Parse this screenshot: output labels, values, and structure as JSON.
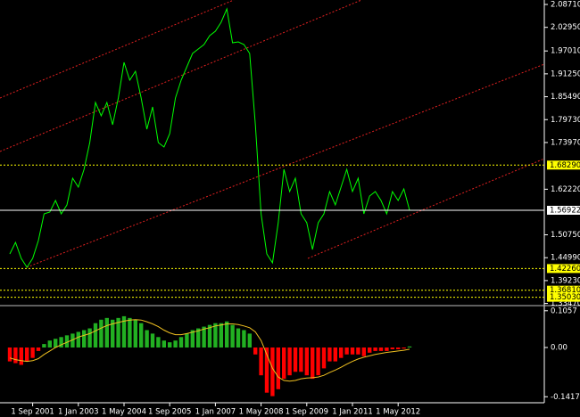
{
  "chart_data": [
    {
      "type": "line",
      "color": "#00ff00",
      "values": [
        1.4593,
        1.4884,
        1.4481,
        1.4257,
        1.4481,
        1.4929,
        1.5602,
        1.5647,
        1.5938,
        1.5602,
        1.5826,
        1.6499,
        1.6274,
        1.6723,
        1.7396,
        1.8405,
        1.8068,
        1.8405,
        1.7844,
        1.8517,
        1.9413,
        1.8965,
        1.9189,
        1.8517,
        1.7732,
        1.8292,
        1.7396,
        1.7283,
        1.762,
        1.8517,
        1.8965,
        1.9301,
        1.9638,
        1.975,
        1.9862,
        2.0086,
        2.0198,
        2.0422,
        2.0759,
        1.9907,
        1.9929,
        1.9862,
        1.9638,
        1.7844,
        1.5602,
        1.4593,
        1.4369,
        1.5378,
        1.6723,
        1.6162,
        1.6499,
        1.5602,
        1.5378,
        1.4705,
        1.5378,
        1.5602,
        1.6162,
        1.5826,
        1.6274,
        1.6723,
        1.6162,
        1.6499,
        1.5602,
        1.605,
        1.6162,
        1.5938,
        1.5602,
        1.6162,
        1.5938,
        1.623,
        1.5692
      ],
      "ylim": [
        1.3293,
        2.0983
      ],
      "yticks": [
        {
          "value": 2.0871,
          "label": "2.08710"
        },
        {
          "value": 2.0295,
          "label": "2.02950"
        },
        {
          "value": 1.9701,
          "label": "1.97010"
        },
        {
          "value": 1.9125,
          "label": "1.91250"
        },
        {
          "value": 1.8549,
          "label": "1.85490"
        },
        {
          "value": 1.7973,
          "label": "1.79730"
        },
        {
          "value": 1.7397,
          "label": "1.73970"
        },
        {
          "value": 1.6222,
          "label": "1.62220"
        },
        {
          "value": 1.5075,
          "label": "1.50750"
        },
        {
          "value": 1.4499,
          "label": "1.44990"
        },
        {
          "value": 1.3923,
          "label": "1.39230"
        },
        {
          "value": 1.3347,
          "label": "1.33470"
        }
      ],
      "levels": [
        {
          "value": 1.6829,
          "label": "1.68290",
          "color": "#ffff00",
          "dashed": true
        },
        {
          "value": 1.56922,
          "label": "1.56922",
          "color": "#ffffff",
          "dashed": false
        },
        {
          "value": 1.4226,
          "label": "1.42260",
          "color": "#ffff00",
          "dashed": true
        },
        {
          "value": 1.3681,
          "label": "1.36810",
          "color": "#ffff00",
          "dashed": true
        },
        {
          "value": 1.3503,
          "label": "1.35030",
          "color": "#ffff00",
          "dashed": true
        }
      ]
    },
    {
      "type": "bar",
      "categories": [
        null,
        null,
        null,
        null,
        "1 Sep 2001",
        null,
        null,
        null,
        null,
        null,
        null,
        null,
        "1 Jan 2003",
        null,
        null,
        null,
        null,
        null,
        null,
        null,
        "1 May 2004",
        null,
        null,
        null,
        null,
        null,
        null,
        null,
        "1 Sep 2005",
        null,
        null,
        null,
        null,
        null,
        null,
        null,
        "1 Jan 2007",
        null,
        null,
        null,
        null,
        null,
        null,
        null,
        "1 May 2008",
        null,
        null,
        null,
        null,
        null,
        null,
        null,
        "1 Sep 2009",
        null,
        null,
        null,
        null,
        null,
        null,
        null,
        "1 Jan 2011",
        null,
        null,
        null,
        null,
        null,
        null,
        null,
        "1 May 2012",
        null,
        null
      ],
      "series": [
        {
          "type": "bar",
          "color": "#22b022",
          "negative_color": "#ff0000",
          "values": [
            -0.04,
            -0.045,
            -0.05,
            -0.04,
            -0.03,
            -0.01,
            0.01,
            0.02,
            0.025,
            0.03,
            0.035,
            0.04,
            0.045,
            0.05,
            0.055,
            0.07,
            0.08,
            0.085,
            0.08,
            0.085,
            0.09,
            0.085,
            0.08,
            0.07,
            0.05,
            0.04,
            0.03,
            0.02,
            0.015,
            0.02,
            0.03,
            0.04,
            0.05,
            0.055,
            0.06,
            0.065,
            0.07,
            0.07,
            0.075,
            0.065,
            0.055,
            0.05,
            0.04,
            -0.02,
            -0.08,
            -0.13,
            -0.14,
            -0.12,
            -0.09,
            -0.08,
            -0.07,
            -0.07,
            -0.08,
            -0.09,
            -0.08,
            -0.06,
            -0.04,
            -0.04,
            -0.03,
            -0.02,
            -0.02,
            -0.02,
            -0.025,
            -0.015,
            -0.01,
            -0.01,
            -0.01,
            -0.005,
            -0.005,
            -0.003,
            0.003
          ]
        },
        {
          "type": "line",
          "color": "#f0c020",
          "values": [
            -0.03,
            -0.035,
            -0.038,
            -0.04,
            -0.038,
            -0.032,
            -0.02,
            -0.01,
            0,
            0.008,
            0.015,
            0.022,
            0.03,
            0.035,
            0.04,
            0.048,
            0.056,
            0.063,
            0.068,
            0.072,
            0.076,
            0.079,
            0.08,
            0.079,
            0.074,
            0.068,
            0.06,
            0.05,
            0.042,
            0.037,
            0.037,
            0.04,
            0.044,
            0.048,
            0.053,
            0.057,
            0.062,
            0.065,
            0.068,
            0.068,
            0.066,
            0.062,
            0.057,
            0.045,
            0.02,
            -0.02,
            -0.06,
            -0.085,
            -0.095,
            -0.097,
            -0.095,
            -0.09,
            -0.088,
            -0.087,
            -0.085,
            -0.08,
            -0.072,
            -0.065,
            -0.057,
            -0.048,
            -0.04,
            -0.033,
            -0.028,
            -0.024,
            -0.02,
            -0.017,
            -0.014,
            -0.012,
            -0.01,
            -0.008,
            -0.005
          ]
        }
      ],
      "ylim": [
        -0.159,
        0.1154
      ],
      "yticks": [
        0.1057,
        {
          "value": 0,
          "label": "0.00"
        },
        -0.1417
      ]
    }
  ]
}
